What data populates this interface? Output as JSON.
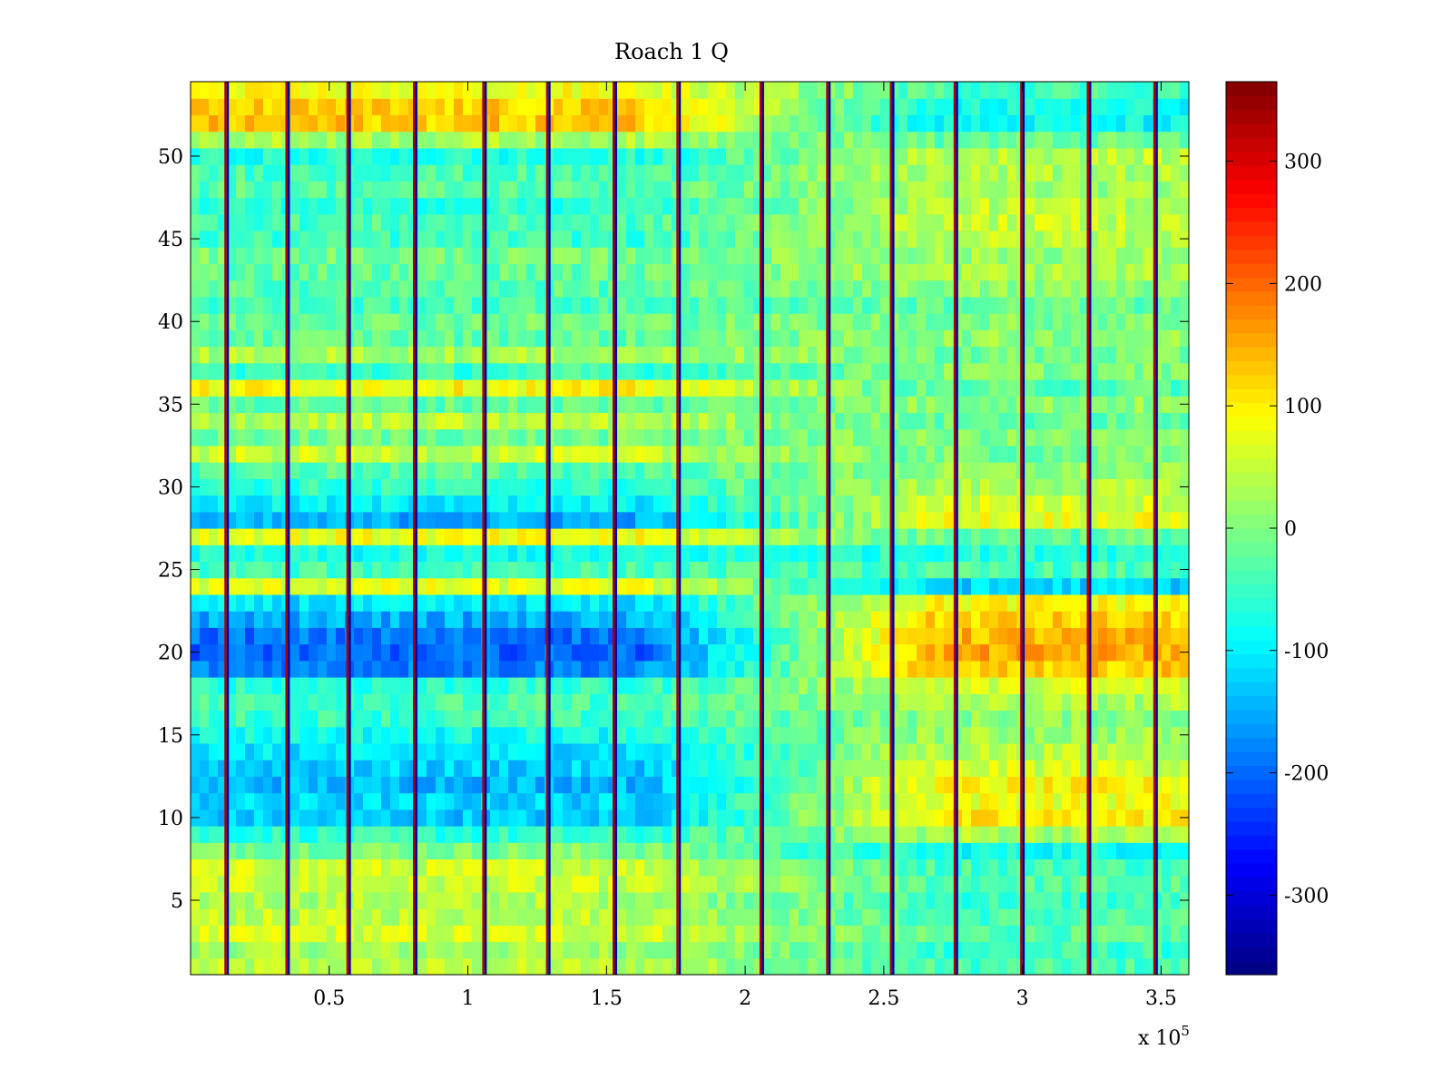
{
  "chart_data": {
    "type": "heatmap",
    "title": "Roach 1 Q",
    "xlabel": "",
    "ylabel": "",
    "x_exponent_label": "x 10",
    "x_exponent_power": "5",
    "xlim": [
      0,
      3.6
    ],
    "ylim": [
      0.5,
      54.5
    ],
    "xticks": [
      0.5,
      1,
      1.5,
      2,
      2.5,
      3,
      3.5
    ],
    "xtick_labels": [
      "0.5",
      "1",
      "1.5",
      "2",
      "2.5",
      "3",
      "3.5"
    ],
    "yticks": [
      5,
      10,
      15,
      20,
      25,
      30,
      35,
      40,
      45,
      50
    ],
    "ytick_labels": [
      "5",
      "10",
      "15",
      "20",
      "25",
      "30",
      "35",
      "40",
      "45",
      "50"
    ],
    "n_rows": 54,
    "clim": [
      -365,
      365
    ],
    "colormap": "jet",
    "colorbar_ticks": [
      300,
      200,
      100,
      0,
      -100,
      -200,
      -300
    ],
    "colorbar_tick_labels": [
      "300",
      "200",
      "100",
      "0",
      "-100",
      "-200",
      "-300"
    ],
    "spike_columns_x": [
      0.13,
      0.35,
      0.57,
      0.81,
      1.06,
      1.29,
      1.53,
      1.76,
      2.06,
      2.3,
      2.53,
      2.76,
      3.0,
      3.24,
      3.48
    ],
    "spike_high_value": 330,
    "spike_low_value": -340,
    "row_mean_early": [
      40,
      25,
      60,
      45,
      35,
      50,
      55,
      0,
      -60,
      -130,
      -120,
      -140,
      -125,
      -110,
      -80,
      -50,
      -40,
      -60,
      -180,
      -200,
      -190,
      -150,
      -110,
      70,
      -40,
      -80,
      80,
      -150,
      -100,
      -60,
      -30,
      50,
      -10,
      40,
      -20,
      90,
      -50,
      30,
      -20,
      -10,
      -40,
      -30,
      -20,
      -10,
      -50,
      -40,
      -60,
      -30,
      -40,
      -70,
      30,
      130,
      120,
      80
    ],
    "row_mean_late": [
      -40,
      -50,
      -30,
      -40,
      -50,
      -30,
      -40,
      -80,
      30,
      100,
      80,
      90,
      60,
      40,
      20,
      10,
      30,
      60,
      130,
      150,
      140,
      120,
      90,
      -120,
      -40,
      -60,
      -20,
      80,
      60,
      30,
      10,
      -10,
      0,
      -20,
      10,
      -30,
      0,
      -10,
      10,
      0,
      -20,
      10,
      30,
      20,
      40,
      50,
      40,
      20,
      30,
      40,
      -20,
      -90,
      -80,
      -40
    ]
  }
}
